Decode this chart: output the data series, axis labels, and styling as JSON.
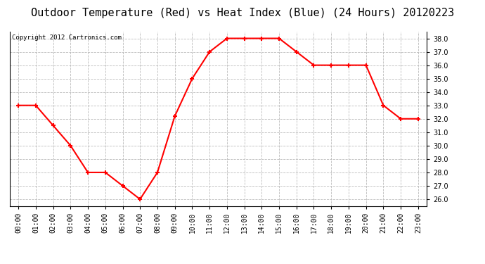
{
  "title": "Outdoor Temperature (Red) vs Heat Index (Blue) (24 Hours) 20120223",
  "copyright_text": "Copyright 2012 Cartronics.com",
  "x_labels": [
    "00:00",
    "01:00",
    "02:00",
    "03:00",
    "04:00",
    "05:00",
    "06:00",
    "07:00",
    "08:00",
    "09:00",
    "10:00",
    "11:00",
    "12:00",
    "13:00",
    "14:00",
    "15:00",
    "16:00",
    "17:00",
    "18:00",
    "19:00",
    "20:00",
    "21:00",
    "22:00",
    "23:00"
  ],
  "red_values": [
    33.0,
    33.0,
    31.5,
    30.0,
    28.0,
    28.0,
    27.0,
    26.0,
    28.0,
    32.2,
    35.0,
    37.0,
    38.0,
    38.0,
    38.0,
    38.0,
    37.0,
    36.0,
    36.0,
    36.0,
    36.0,
    33.0,
    32.0,
    32.0
  ],
  "blue_values": [],
  "ylim": [
    25.5,
    38.5
  ],
  "ytick_min": 26.0,
  "ytick_max": 38.0,
  "ytick_step": 1.0,
  "line_color_red": "#ff0000",
  "line_color_blue": "#0000ff",
  "bg_color": "#ffffff",
  "plot_bg_color": "#ffffff",
  "grid_color": "#bbbbbb",
  "title_fontsize": 11,
  "copyright_fontsize": 6.5,
  "tick_fontsize": 7,
  "marker": "+",
  "marker_size": 5,
  "linewidth": 1.5
}
